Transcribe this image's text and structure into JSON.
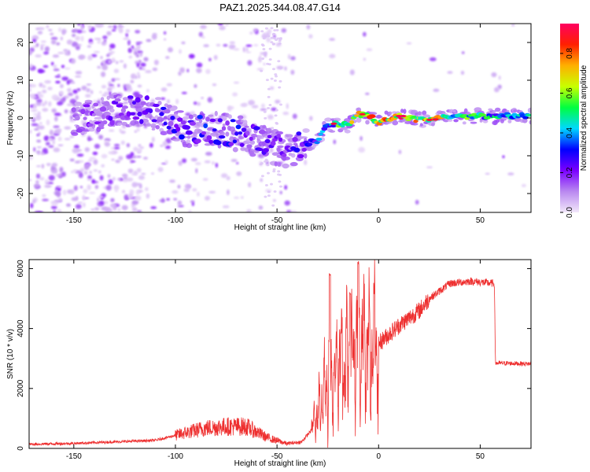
{
  "figure_title": "PAZ1.2025.344.08.47.G14",
  "chart_data": [
    {
      "type": "heatmap",
      "title": "PAZ1.2025.344.08.47.G14",
      "xlabel": "Height of straight line (km)",
      "ylabel": "Frequency (Hz)",
      "xlim": [
        -172,
        75
      ],
      "ylim": [
        -25,
        25
      ],
      "xticks": [
        -150,
        -100,
        -50,
        0,
        50
      ],
      "yticks": [
        -20,
        -10,
        0,
        10,
        20
      ],
      "colorbar": {
        "label": "Normalized spectral amplitude",
        "range": [
          0.0,
          0.95
        ],
        "ticks": [
          "0.0",
          "0.2",
          "0.4",
          "0.6",
          "0.8"
        ],
        "colors": [
          "#f2e8fa",
          "#b988f0",
          "#7a00ff",
          "#0000ff",
          "#00d8ff",
          "#00ff40",
          "#c8ff00",
          "#ffb000",
          "#ff2000",
          "#ff0060"
        ]
      },
      "ridge": [
        {
          "x": -140,
          "f": 0.0,
          "a": 0.18
        },
        {
          "x": -130,
          "f": 2.0,
          "a": 0.2
        },
        {
          "x": -115,
          "f": 2.5,
          "a": 0.22
        },
        {
          "x": -105,
          "f": 0.0,
          "a": 0.25
        },
        {
          "x": -95,
          "f": -3.0,
          "a": 0.28
        },
        {
          "x": -80,
          "f": -3.0,
          "a": 0.3
        },
        {
          "x": -70,
          "f": -4.0,
          "a": 0.3
        },
        {
          "x": -60,
          "f": -6.0,
          "a": 0.25
        },
        {
          "x": -45,
          "f": -9.0,
          "a": 0.22
        },
        {
          "x": -38,
          "f": -7.0,
          "a": 0.28
        },
        {
          "x": -30,
          "f": -6.0,
          "a": 0.35
        },
        {
          "x": -25,
          "f": -2.0,
          "a": 0.4
        },
        {
          "x": -20,
          "f": -1.5,
          "a": 0.55
        },
        {
          "x": -15,
          "f": -2.0,
          "a": 0.6
        },
        {
          "x": -10,
          "f": 1.0,
          "a": 0.7
        },
        {
          "x": -5,
          "f": 0.5,
          "a": 0.75
        },
        {
          "x": 0,
          "f": -1.0,
          "a": 0.7
        },
        {
          "x": 5,
          "f": 0.0,
          "a": 0.75
        },
        {
          "x": 10,
          "f": 0.5,
          "a": 0.85
        },
        {
          "x": 20,
          "f": -0.5,
          "a": 0.8
        },
        {
          "x": 30,
          "f": 0.0,
          "a": 0.75
        },
        {
          "x": 40,
          "f": 0.3,
          "a": 0.55
        },
        {
          "x": 50,
          "f": 0.5,
          "a": 0.5
        },
        {
          "x": 60,
          "f": 0.5,
          "a": 0.45
        },
        {
          "x": 70,
          "f": 0.5,
          "a": 0.45
        }
      ]
    },
    {
      "type": "line",
      "xlabel": "Height of straight line (km)",
      "ylabel": "SNR (10 * v/v)",
      "xlim": [
        -172,
        75
      ],
      "ylim": [
        0,
        6300
      ],
      "xticks": [
        -150,
        -100,
        -50,
        0,
        50
      ],
      "yticks": [
        0,
        2000,
        4000,
        6000
      ],
      "line_color": "#ee3030",
      "envelope": [
        {
          "x": -172,
          "y": 120
        },
        {
          "x": -150,
          "y": 150
        },
        {
          "x": -130,
          "y": 200
        },
        {
          "x": -110,
          "y": 250
        },
        {
          "x": -95,
          "y": 500
        },
        {
          "x": -85,
          "y": 650
        },
        {
          "x": -75,
          "y": 700
        },
        {
          "x": -65,
          "y": 700
        },
        {
          "x": -55,
          "y": 350
        },
        {
          "x": -45,
          "y": 150
        },
        {
          "x": -38,
          "y": 200
        },
        {
          "x": -33,
          "y": 600
        },
        {
          "x": -29,
          "y": 1400
        },
        {
          "x": -25,
          "y": 2200
        },
        {
          "x": -20,
          "y": 2800
        },
        {
          "x": -15,
          "y": 3100
        },
        {
          "x": -10,
          "y": 3200
        },
        {
          "x": -5,
          "y": 3400
        },
        {
          "x": 0,
          "y": 3500
        },
        {
          "x": 10,
          "y": 4100
        },
        {
          "x": 20,
          "y": 4600
        },
        {
          "x": 25,
          "y": 5000
        },
        {
          "x": 35,
          "y": 5500
        },
        {
          "x": 45,
          "y": 5580
        },
        {
          "x": 57,
          "y": 5500
        },
        {
          "x": 57.5,
          "y": 2850
        },
        {
          "x": 75,
          "y": 2820
        }
      ],
      "notable_spikes": [
        {
          "x": -24,
          "y": 5900
        },
        {
          "x": -14,
          "y": 5200
        },
        {
          "x": -10,
          "y": 6250
        }
      ]
    }
  ]
}
